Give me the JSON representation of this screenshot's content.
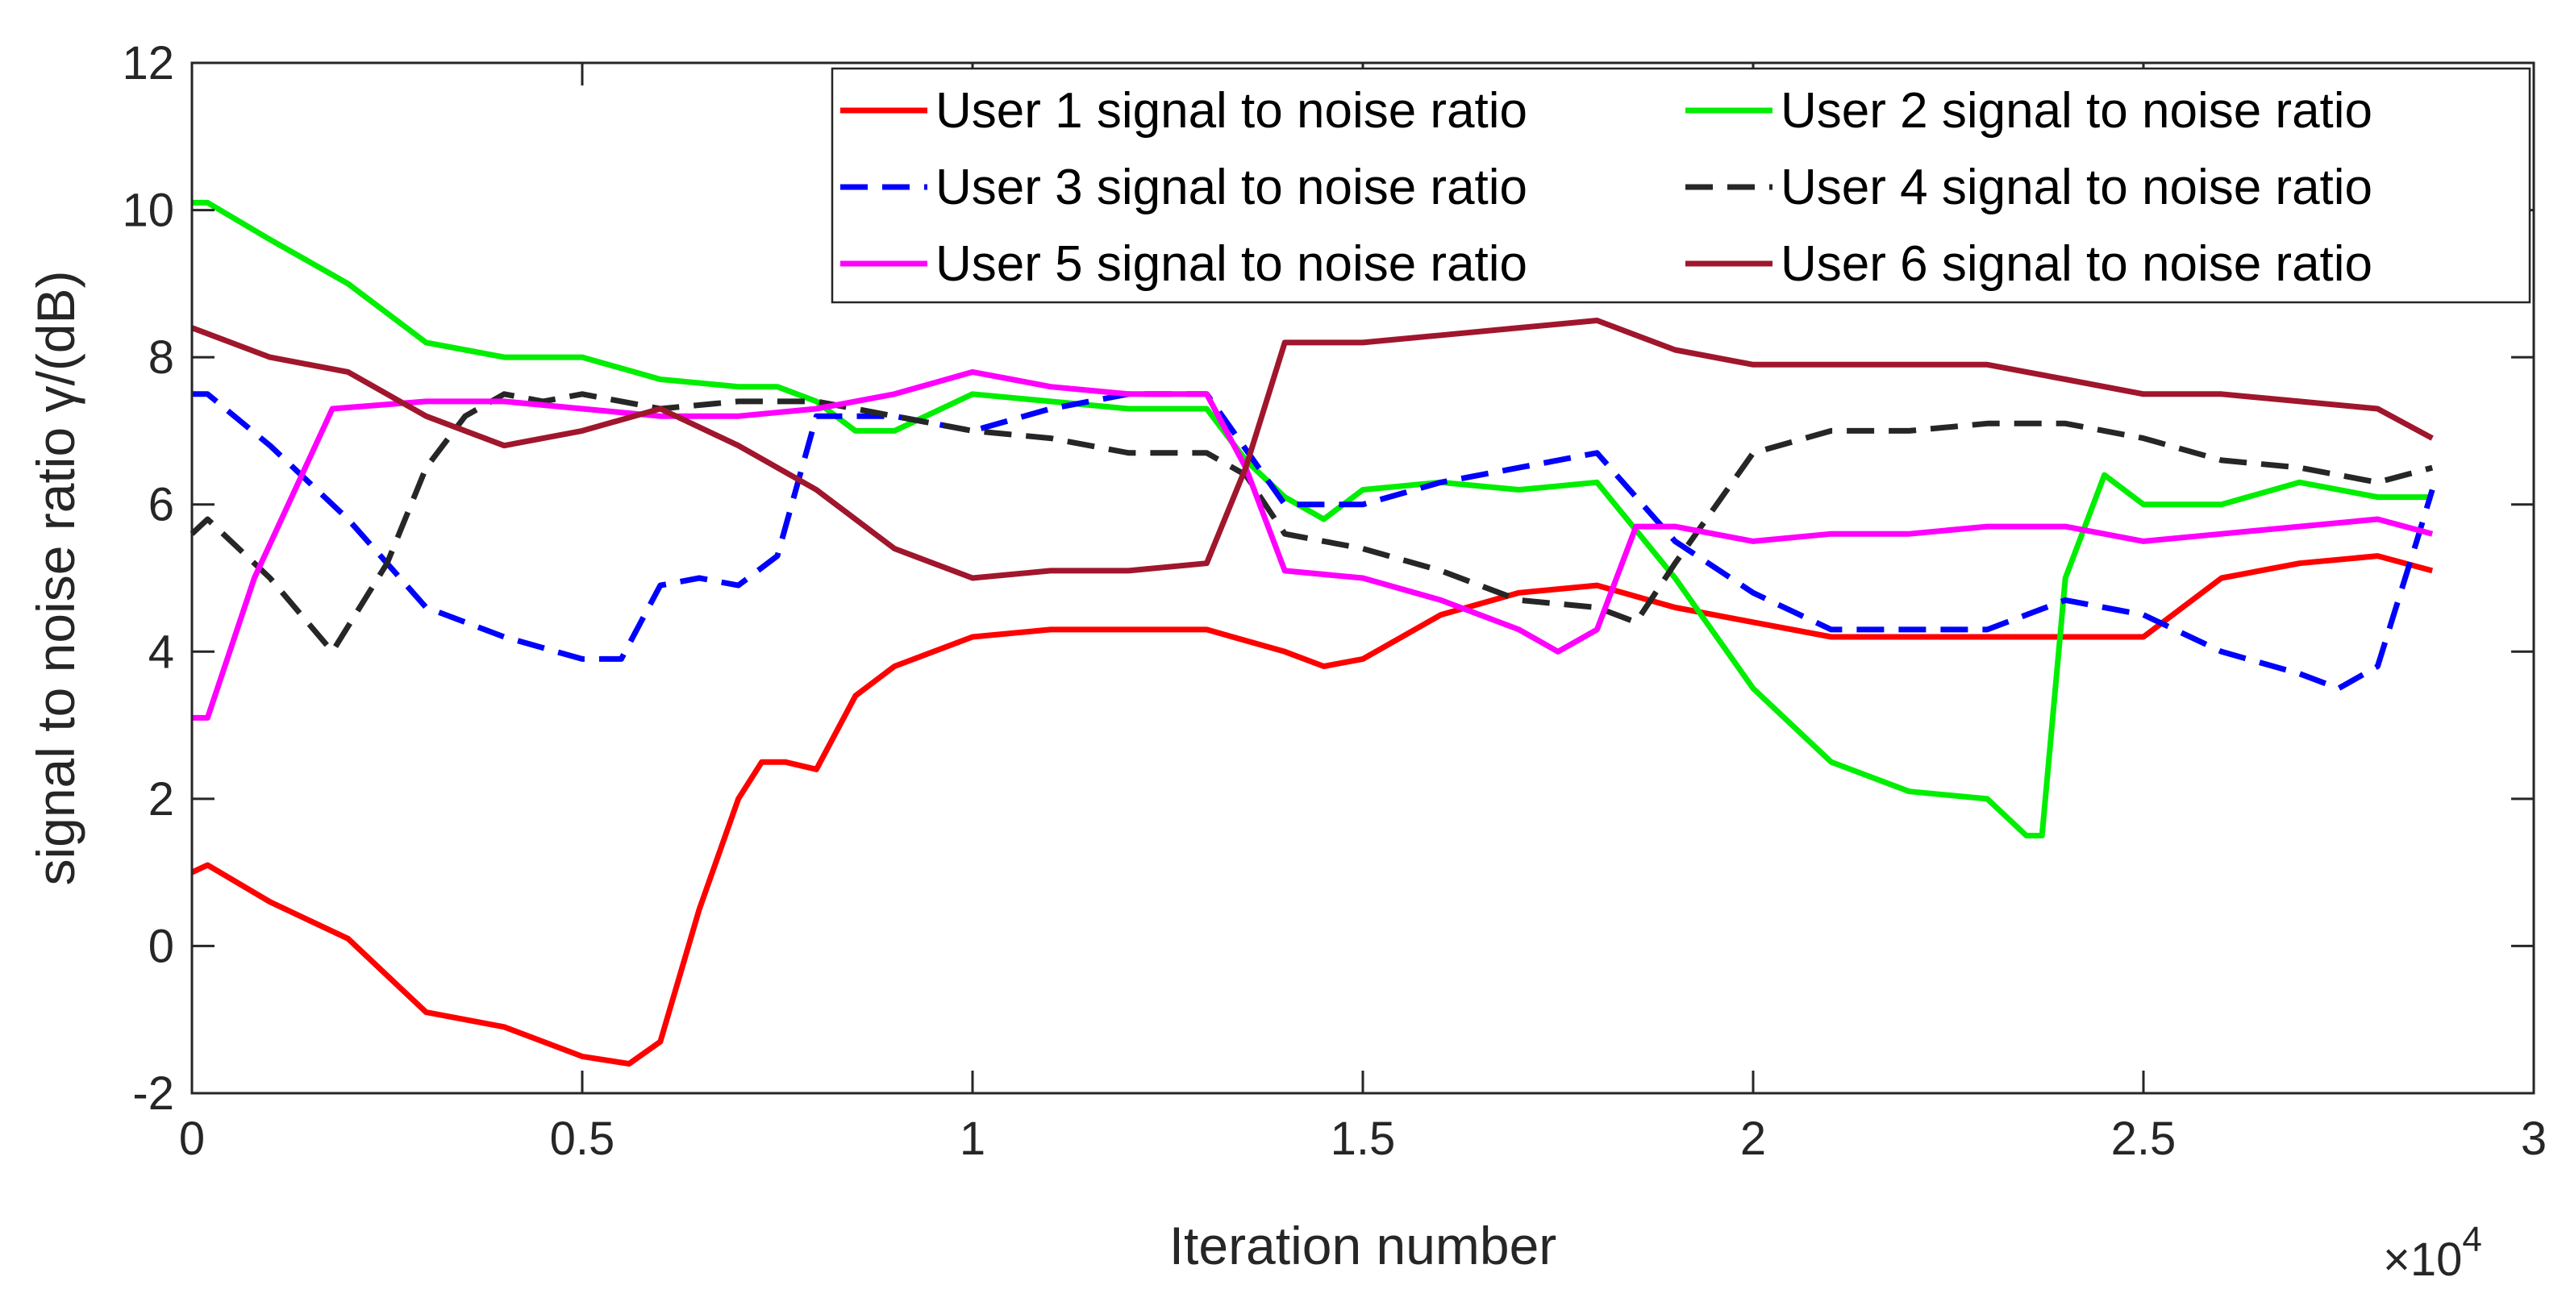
{
  "chart_data": {
    "type": "line",
    "xlabel": "Iteration number",
    "ylabel": "signal to noise ratio γ/(dB)",
    "x_multiplier": "×10",
    "x_multiplier_exp": "4",
    "xlim": [
      0,
      3
    ],
    "ylim": [
      -2,
      12
    ],
    "x_ticks": [
      0,
      0.5,
      1,
      1.5,
      2,
      2.5,
      3
    ],
    "x_tick_labels": [
      "0",
      "0.5",
      "1",
      "1.5",
      "2",
      "2.5",
      "3"
    ],
    "y_ticks": [
      -2,
      0,
      2,
      4,
      6,
      8,
      10,
      12
    ],
    "y_tick_labels": [
      "-2",
      "0",
      "2",
      "4",
      "6",
      "8",
      "10",
      "12"
    ],
    "grid": false,
    "legend_position": "top-right",
    "series": [
      {
        "name": "User 1 signal to noise ratio",
        "color": "#ff0000",
        "dash": "solid",
        "x": [
          0,
          0.02,
          0.1,
          0.2,
          0.3,
          0.4,
          0.5,
          0.56,
          0.6,
          0.65,
          0.7,
          0.73,
          0.76,
          0.8,
          0.85,
          0.9,
          1.0,
          1.1,
          1.2,
          1.3,
          1.4,
          1.45,
          1.5,
          1.6,
          1.7,
          1.8,
          1.9,
          2.0,
          2.1,
          2.2,
          2.3,
          2.4,
          2.5,
          2.6,
          2.7,
          2.8,
          2.87
        ],
        "y": [
          1.0,
          1.1,
          0.6,
          0.1,
          -0.9,
          -1.1,
          -1.5,
          -1.6,
          -1.3,
          0.5,
          2.0,
          2.5,
          2.5,
          2.4,
          3.4,
          3.8,
          4.2,
          4.3,
          4.3,
          4.3,
          4.0,
          3.8,
          3.9,
          4.5,
          4.8,
          4.9,
          4.6,
          4.4,
          4.2,
          4.2,
          4.2,
          4.2,
          4.2,
          5.0,
          5.2,
          5.3,
          5.1
        ]
      },
      {
        "name": "User 2 signal to noise ratio",
        "color": "#00ee00",
        "dash": "solid",
        "x": [
          0,
          0.02,
          0.1,
          0.2,
          0.3,
          0.35,
          0.4,
          0.45,
          0.5,
          0.6,
          0.7,
          0.75,
          0.8,
          0.85,
          0.9,
          1.0,
          1.1,
          1.2,
          1.3,
          1.35,
          1.4,
          1.45,
          1.5,
          1.6,
          1.7,
          1.8,
          1.9,
          2.0,
          2.1,
          2.2,
          2.3,
          2.35,
          2.37,
          2.4,
          2.45,
          2.5,
          2.6,
          2.7,
          2.8,
          2.87
        ],
        "y": [
          10.1,
          10.1,
          9.6,
          9.0,
          8.2,
          8.1,
          8.0,
          8.0,
          8.0,
          7.7,
          7.6,
          7.6,
          7.4,
          7.0,
          7.0,
          7.5,
          7.4,
          7.3,
          7.3,
          6.6,
          6.1,
          5.8,
          6.2,
          6.3,
          6.2,
          6.3,
          5.0,
          3.5,
          2.5,
          2.1,
          2.0,
          1.5,
          1.5,
          5.0,
          6.4,
          6.0,
          6.0,
          6.3,
          6.1,
          6.1
        ]
      },
      {
        "name": "User 3 signal to noise ratio",
        "color": "#0000ff",
        "dash": "dashed",
        "x": [
          0,
          0.02,
          0.1,
          0.2,
          0.3,
          0.4,
          0.5,
          0.55,
          0.6,
          0.65,
          0.7,
          0.75,
          0.8,
          0.85,
          0.9,
          1.0,
          1.1,
          1.2,
          1.3,
          1.4,
          1.5,
          1.6,
          1.7,
          1.8,
          1.9,
          2.0,
          2.1,
          2.2,
          2.3,
          2.4,
          2.5,
          2.6,
          2.7,
          2.75,
          2.8,
          2.85,
          2.87
        ],
        "y": [
          7.5,
          7.5,
          6.8,
          5.8,
          4.6,
          4.2,
          3.9,
          3.9,
          4.9,
          5.0,
          4.9,
          5.3,
          7.2,
          7.2,
          7.2,
          7.0,
          7.3,
          7.5,
          7.5,
          6.0,
          6.0,
          6.3,
          6.5,
          6.7,
          5.5,
          4.8,
          4.3,
          4.3,
          4.3,
          4.7,
          4.5,
          4.0,
          3.7,
          3.5,
          3.8,
          5.5,
          6.2
        ]
      },
      {
        "name": "User 4 signal to noise ratio",
        "color": "#262626",
        "dash": "dashed",
        "x": [
          0,
          0.02,
          0.1,
          0.18,
          0.25,
          0.3,
          0.35,
          0.4,
          0.45,
          0.5,
          0.6,
          0.7,
          0.8,
          0.9,
          1.0,
          1.1,
          1.2,
          1.3,
          1.35,
          1.4,
          1.5,
          1.6,
          1.7,
          1.8,
          1.85,
          1.9,
          2.0,
          2.1,
          2.2,
          2.3,
          2.4,
          2.5,
          2.6,
          2.7,
          2.8,
          2.87
        ],
        "y": [
          5.6,
          5.8,
          5.0,
          4.0,
          5.2,
          6.5,
          7.2,
          7.5,
          7.4,
          7.5,
          7.3,
          7.4,
          7.4,
          7.2,
          7.0,
          6.9,
          6.7,
          6.7,
          6.4,
          5.6,
          5.4,
          5.1,
          4.7,
          4.6,
          4.4,
          5.2,
          6.7,
          7.0,
          7.0,
          7.1,
          7.1,
          6.9,
          6.6,
          6.5,
          6.3,
          6.5
        ]
      },
      {
        "name": "User 5 signal to noise ratio",
        "color": "#ff00ff",
        "dash": "solid",
        "x": [
          0,
          0.02,
          0.08,
          0.18,
          0.3,
          0.4,
          0.5,
          0.6,
          0.7,
          0.8,
          0.9,
          1.0,
          1.05,
          1.1,
          1.2,
          1.3,
          1.35,
          1.4,
          1.5,
          1.6,
          1.7,
          1.75,
          1.8,
          1.85,
          1.9,
          2.0,
          2.1,
          2.2,
          2.3,
          2.4,
          2.5,
          2.6,
          2.7,
          2.8,
          2.87
        ],
        "y": [
          3.1,
          3.1,
          5.0,
          7.3,
          7.4,
          7.4,
          7.3,
          7.2,
          7.2,
          7.3,
          7.5,
          7.8,
          7.7,
          7.6,
          7.5,
          7.5,
          6.5,
          5.1,
          5.0,
          4.7,
          4.3,
          4.0,
          4.3,
          5.7,
          5.7,
          5.5,
          5.6,
          5.6,
          5.7,
          5.7,
          5.5,
          5.6,
          5.7,
          5.8,
          5.6
        ]
      },
      {
        "name": "User 6 signal to noise ratio",
        "color": "#a0162c",
        "dash": "solid",
        "x": [
          0,
          0.1,
          0.2,
          0.3,
          0.4,
          0.5,
          0.6,
          0.7,
          0.8,
          0.9,
          1.0,
          1.1,
          1.2,
          1.3,
          1.35,
          1.4,
          1.45,
          1.5,
          1.6,
          1.7,
          1.8,
          1.9,
          2.0,
          2.1,
          2.2,
          2.3,
          2.4,
          2.5,
          2.6,
          2.7,
          2.8,
          2.87
        ],
        "y": [
          8.4,
          8.0,
          7.8,
          7.2,
          6.8,
          7.0,
          7.3,
          6.8,
          6.2,
          5.4,
          5.0,
          5.1,
          5.1,
          5.2,
          6.5,
          8.2,
          8.2,
          8.2,
          8.3,
          8.4,
          8.5,
          8.1,
          7.9,
          7.9,
          7.9,
          7.9,
          7.7,
          7.5,
          7.5,
          7.4,
          7.3,
          6.9
        ]
      }
    ]
  }
}
